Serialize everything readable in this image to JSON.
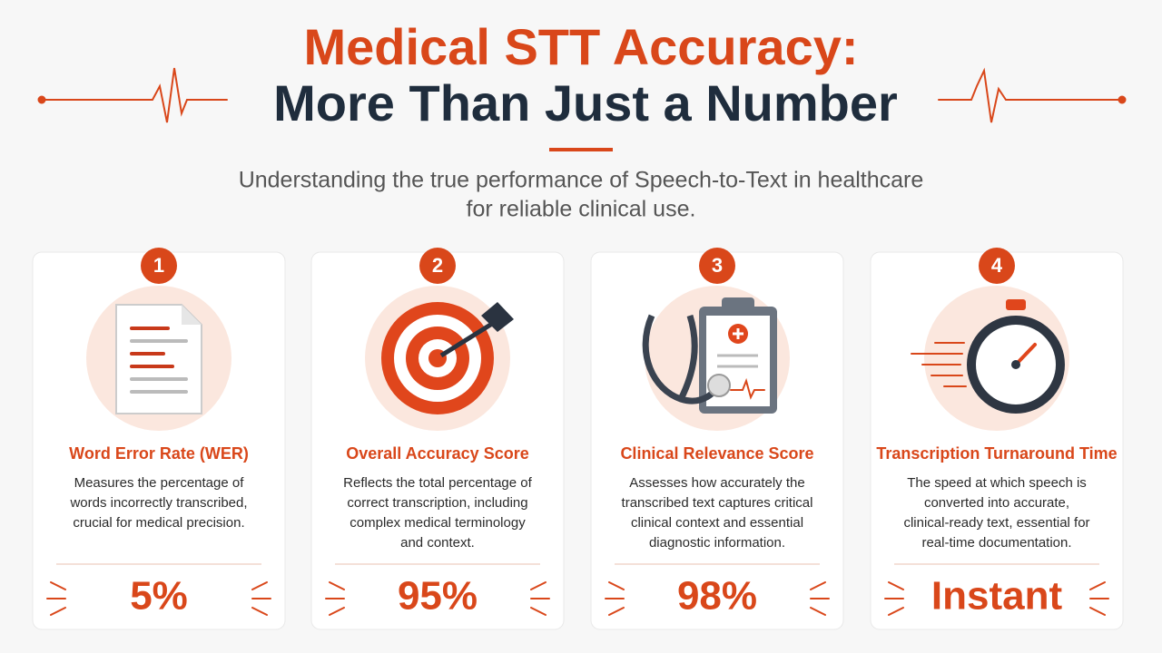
{
  "header": {
    "title_line1": "Medical STT Accuracy:",
    "title_line2": "More Than Just a Number",
    "subtitle_line1": "Understanding the true performance of Speech-to-Text in healthcare",
    "subtitle_line2": "for reliable clinical use."
  },
  "cards": [
    {
      "number": "1",
      "title": "Word Error Rate (WER)",
      "description": [
        "Measures the percentage of",
        "words incorrectly transcribed,",
        "crucial for medical precision."
      ],
      "metric": "5%"
    },
    {
      "number": "2",
      "title": "Overall Accuracy Score",
      "description": [
        "Reflects the total percentage of",
        "correct transcription, including",
        "complex medical terminology",
        "and context."
      ],
      "metric": "95%"
    },
    {
      "number": "3",
      "title": "Clinical Relevance Score",
      "description": [
        "Assesses how accurately the",
        "transcribed text captures critical",
        "clinical context and essential",
        "diagnostic information."
      ],
      "metric": "98%"
    },
    {
      "number": "4",
      "title": "Transcription Turnaround Time",
      "description": [
        "The speed at which speech is",
        "converted into accurate,",
        "clinical-ready text, essential for",
        "real-time documentation."
      ],
      "metric": "Instant"
    }
  ]
}
